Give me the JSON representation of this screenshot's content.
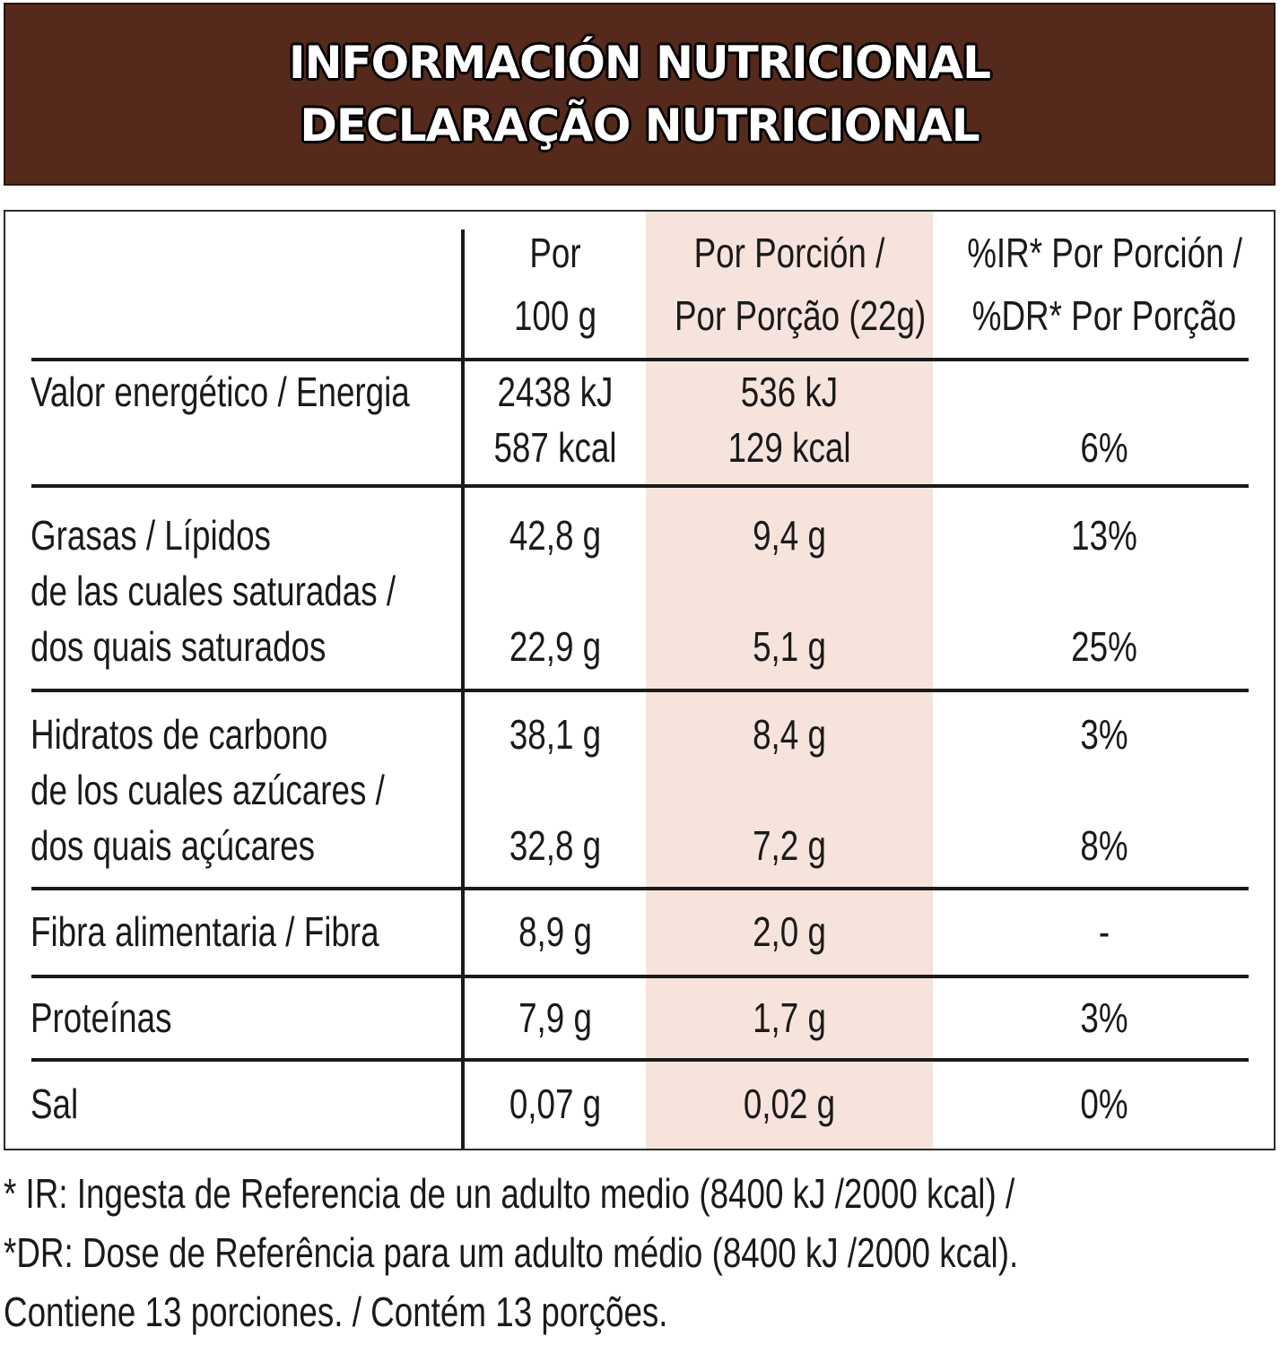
{
  "header": {
    "title_es": "INFORMACIÓN NUTRICIONAL",
    "title_pt": "DECLARAÇÃO NUTRICIONAL"
  },
  "columns": {
    "per100_line1": "Por",
    "per100_line2": "100 g",
    "portion_line1": "Por Porción /",
    "portion_line2": "Por Porção (22g)",
    "ri_line1": "%IR* Por Porción /",
    "ri_line2": "%DR* Por Porção"
  },
  "rows": {
    "energy": {
      "label": "Valor energético / Energia",
      "per100_kj": "2438 kJ",
      "per100_kcal": "587 kcal",
      "portion_kj": "536 kJ",
      "portion_kcal": "129 kcal",
      "ri": "6%"
    },
    "fat": {
      "label": "Grasas / Lípidos",
      "per100": "42,8 g",
      "portion": "9,4 g",
      "ri": "13%"
    },
    "saturates": {
      "label_line1": "de las cuales saturadas /",
      "label_line2": "dos quais saturados",
      "per100": "22,9 g",
      "portion": "5,1 g",
      "ri": "25%"
    },
    "carbs": {
      "label": "Hidratos de carbono",
      "per100": "38,1 g",
      "portion": "8,4 g",
      "ri": "3%"
    },
    "sugars": {
      "label_line1": "de los cuales azúcares /",
      "label_line2": "dos quais açúcares",
      "per100": "32,8 g",
      "portion": "7,2 g",
      "ri": "8%"
    },
    "fibre": {
      "label": "Fibra alimentaria / Fibra",
      "per100": "8,9 g",
      "portion": "2,0 g",
      "ri": "-"
    },
    "protein": {
      "label": "Proteínas",
      "per100": "7,9 g",
      "portion": "1,7 g",
      "ri": "3%"
    },
    "salt": {
      "label": "Sal",
      "per100": "0,07 g",
      "portion": "0,02 g",
      "ri": "0%"
    }
  },
  "footnotes": {
    "line1": "* IR: Ingesta de Referencia de un adulto medio (8400 kJ /2000 kcal) /",
    "line2": "*DR: Dose de Referência para um adulto médio (8400 kJ /2000 kcal).",
    "line3": "Contiene 13 porciones. / Contém 13 porções."
  },
  "colors": {
    "header_bg": "#55291b",
    "portion_column_bg": "#f6e3dc",
    "rule": "#1a1a1a"
  }
}
